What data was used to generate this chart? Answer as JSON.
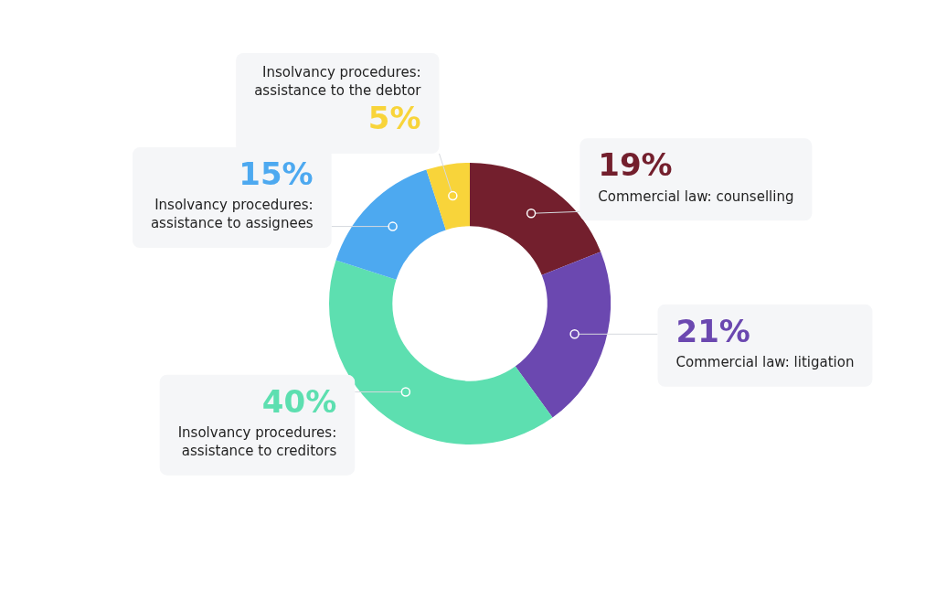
{
  "chart_data": {
    "type": "donut",
    "categories": [
      "Commercial law: counselling",
      "Commercial law: litigation",
      "Insolvancy procedures:\nassistance to creditors",
      "Insolvancy procedures:\nassistance to assignees",
      "Insolvancy procedures:\nassistance to the debtor"
    ],
    "values": [
      19,
      21,
      40,
      15,
      5
    ],
    "colors": [
      "#731f2d",
      "#6b48b0",
      "#5ddfb0",
      "#4da9f0",
      "#f8d43a"
    ],
    "value_labels": [
      "19%",
      "21%",
      "40%",
      "15%",
      "5%"
    ]
  }
}
